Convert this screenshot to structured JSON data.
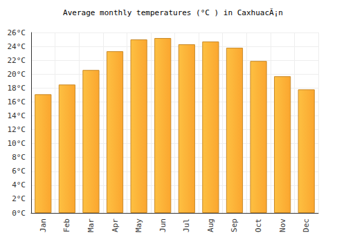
{
  "chart_data": {
    "type": "bar",
    "title": "Average monthly temperatures (°C ) in CaxhuacÃ¡n",
    "categories": [
      "Jan",
      "Feb",
      "Mar",
      "Apr",
      "May",
      "Jun",
      "Jul",
      "Aug",
      "Sep",
      "Oct",
      "Nov",
      "Dec"
    ],
    "values": [
      17.1,
      18.5,
      20.6,
      23.3,
      25.0,
      25.2,
      24.3,
      24.7,
      23.8,
      21.9,
      19.7,
      17.8
    ],
    "color": "#fba62f",
    "ylim": [
      0,
      26
    ],
    "yticks": [
      {
        "value": 0,
        "label": "0°C"
      },
      {
        "value": 2,
        "label": "2°C"
      },
      {
        "value": 4,
        "label": "4°C"
      },
      {
        "value": 6,
        "label": "6°C"
      },
      {
        "value": 8,
        "label": "8°C"
      },
      {
        "value": 10,
        "label": "10°C"
      },
      {
        "value": 12,
        "label": "12°C"
      },
      {
        "value": 14,
        "label": "14°C"
      },
      {
        "value": 16,
        "label": "16°C"
      },
      {
        "value": 18,
        "label": "18°C"
      },
      {
        "value": 20,
        "label": "20°C"
      },
      {
        "value": 22,
        "label": "22°C"
      },
      {
        "value": 24,
        "label": "24°C"
      },
      {
        "value": 26,
        "label": "26°C"
      }
    ],
    "grid": true
  }
}
